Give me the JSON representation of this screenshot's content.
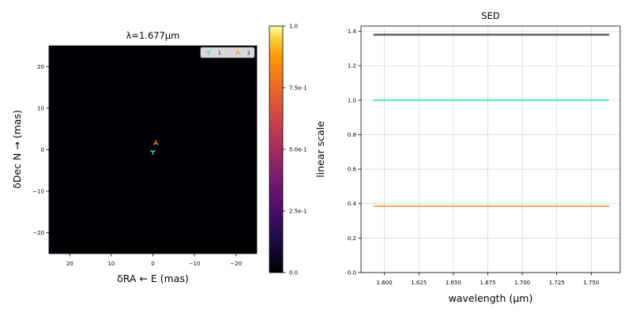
{
  "chart_data": [
    {
      "type": "image",
      "title": "λ=1.677μm",
      "xlabel": "δRA ← E (mas)",
      "ylabel": "δDec N → (mas)",
      "xlim": [
        25,
        -25
      ],
      "ylim": [
        -25,
        25
      ],
      "xticks": [
        "20",
        "10",
        "0",
        "−10",
        "−20"
      ],
      "xtick_values": [
        20,
        10,
        0,
        -10,
        -20
      ],
      "yticks": [
        "20",
        "10",
        "0",
        "−10",
        "−20"
      ],
      "ytick_values": [
        20,
        10,
        0,
        -10,
        -20
      ],
      "background_color": "#000004",
      "legend": {
        "placement": "top-right",
        "entries": [
          {
            "label": "1",
            "color": "#2ee6a8",
            "marker": "tri-down"
          },
          {
            "label": "2",
            "color": "#ff8c1a",
            "marker": "tri-up"
          }
        ]
      },
      "markers": [
        {
          "name": "1",
          "x": 0.0,
          "y": -0.5,
          "color": "#2ee6a8"
        },
        {
          "name": "2",
          "x": -0.7,
          "y": 1.6,
          "color": "#ff8c1a"
        }
      ],
      "colorbar": {
        "label": "linear scale",
        "colormap": "inferno",
        "range": [
          0,
          1
        ],
        "ticks": [
          "0.0",
          "2.5e-1",
          "5.0e-1",
          "7.5e-1",
          "1.0"
        ],
        "tick_values": [
          0,
          0.25,
          0.5,
          0.75,
          1.0
        ]
      }
    },
    {
      "type": "line",
      "title": "SED",
      "xlabel": "wavelength (μm)",
      "ylabel": "",
      "xlim": [
        1.583,
        1.771
      ],
      "ylim": [
        0.0,
        1.43
      ],
      "xticks": [
        "1.600",
        "1.625",
        "1.650",
        "1.675",
        "1.700",
        "1.725",
        "1.750"
      ],
      "xtick_values": [
        1.6,
        1.625,
        1.65,
        1.675,
        1.7,
        1.725,
        1.75
      ],
      "yticks": [
        "0.0",
        "0.2",
        "0.4",
        "0.6",
        "0.8",
        "1.0",
        "1.2",
        "1.4"
      ],
      "ytick_values": [
        0.0,
        0.2,
        0.4,
        0.6,
        0.8,
        1.0,
        1.2,
        1.4
      ],
      "grid": true,
      "series": [
        {
          "x": [
            1.592,
            1.763
          ],
          "y": [
            1.38,
            1.38
          ],
          "color": "#666666"
        },
        {
          "x": [
            1.592,
            1.763
          ],
          "y": [
            1.0,
            1.0
          ],
          "color": "#2ee6a8"
        },
        {
          "x": [
            1.592,
            1.763
          ],
          "y": [
            0.385,
            0.385
          ],
          "color": "#ff8c1a"
        }
      ]
    }
  ]
}
